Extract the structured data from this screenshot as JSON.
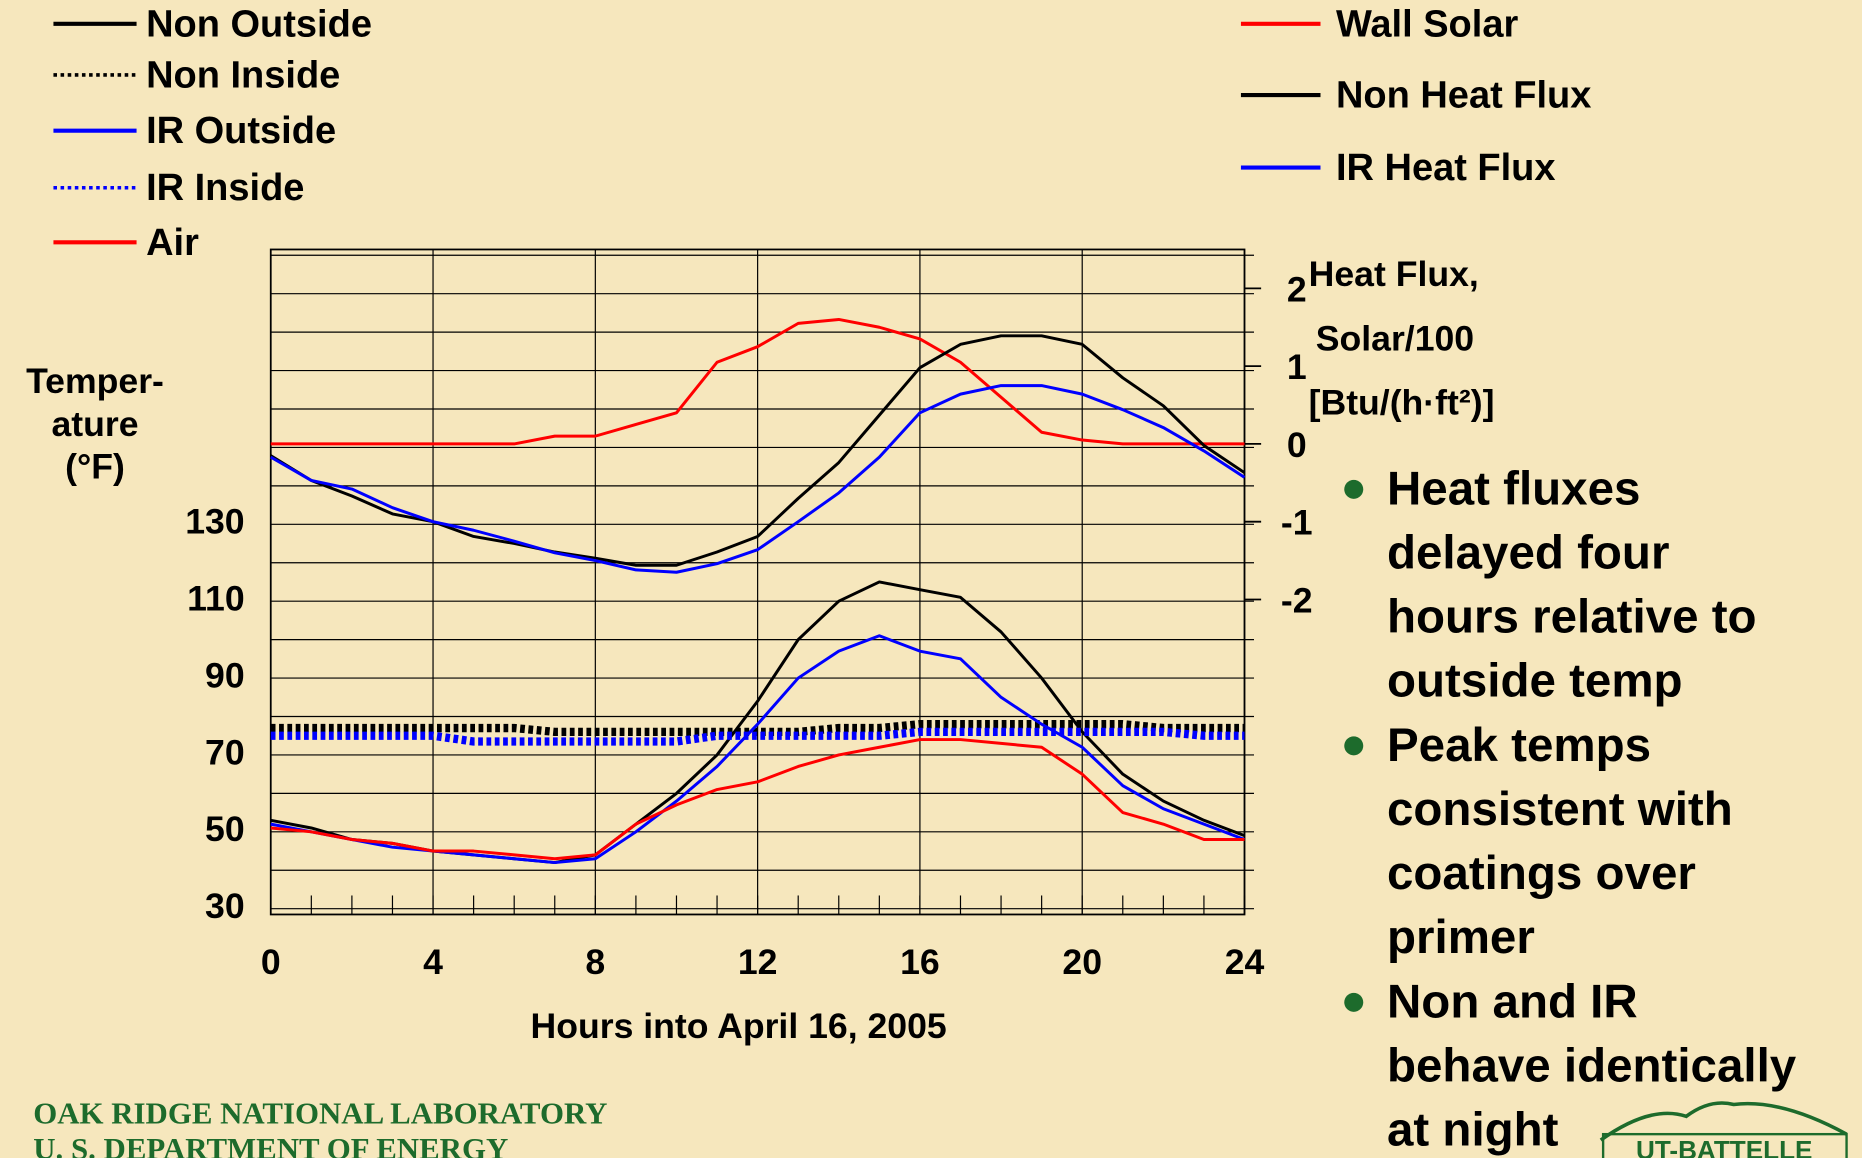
{
  "chart_data": {
    "type": "line",
    "xlabel": "Hours into April 16, 2005",
    "ylabel": [
      "Temper-",
      "ature",
      "(°F)"
    ],
    "y2label": [
      "Heat Flux,",
      "Solar/100",
      "[Btu/(h·ft²)]"
    ],
    "x": [
      0,
      1,
      2,
      3,
      4,
      5,
      6,
      7,
      8,
      9,
      10,
      11,
      12,
      13,
      14,
      15,
      16,
      17,
      18,
      19,
      20,
      21,
      22,
      23,
      24
    ],
    "xlim": [
      0,
      24
    ],
    "xticks": [
      0,
      4,
      8,
      12,
      16,
      20,
      24
    ],
    "ylim": [
      28.5,
      201.5
    ],
    "yticks": [
      30,
      50,
      70,
      90,
      110,
      130
    ],
    "yminorticks": [
      30,
      40,
      50,
      60,
      70,
      80,
      90,
      100,
      110,
      120,
      130,
      140,
      150,
      160,
      170,
      180,
      190,
      200
    ],
    "y2lim": [
      -6.05,
      2.5
    ],
    "y2ticks": [
      -2,
      -1,
      0,
      1,
      2
    ],
    "grid": true,
    "series": [
      {
        "name": "Non Outside",
        "color": "#000000",
        "style": "solid",
        "values": [
          53,
          51,
          48,
          47,
          45,
          44,
          43,
          42,
          44,
          52,
          60,
          70,
          84,
          100,
          110,
          115,
          113,
          111,
          102,
          90,
          76,
          65,
          58,
          53,
          49
        ]
      },
      {
        "name": "Non Inside",
        "color": "#000000",
        "style": "dotted",
        "values": [
          77,
          77,
          77,
          77,
          77,
          77,
          77,
          76,
          76,
          76,
          76,
          76,
          76,
          76,
          77,
          77,
          78,
          78,
          78,
          78,
          78,
          78,
          77,
          77,
          77
        ]
      },
      {
        "name": "IR Outside",
        "color": "#0000ff",
        "style": "solid",
        "values": [
          52,
          50,
          48,
          46,
          45,
          44,
          43,
          42,
          43,
          50,
          58,
          67,
          78,
          90,
          97,
          101,
          97,
          95,
          85,
          78,
          72,
          62,
          56,
          52,
          48
        ]
      },
      {
        "name": "IR Inside",
        "color": "#0000ff",
        "style": "dotted",
        "values": [
          75,
          75,
          75,
          75,
          75,
          73.5,
          73.5,
          73.5,
          73.5,
          73.5,
          73.5,
          75,
          75,
          75,
          75,
          75,
          76,
          76,
          76,
          76,
          76,
          76,
          76,
          75,
          75
        ]
      },
      {
        "name": "Air",
        "color": "#ff0000",
        "style": "solid",
        "values": [
          51,
          50,
          48,
          47,
          45,
          45,
          44,
          43,
          44,
          52,
          57,
          61,
          63,
          67,
          70,
          72,
          74,
          74,
          73,
          72,
          65,
          55,
          52,
          48,
          48
        ]
      },
      {
        "name": "Wall Solar",
        "color": "#ff0000",
        "style": "solid",
        "axis": "y2",
        "values": [
          0,
          0,
          0,
          0,
          0,
          0,
          0,
          0.1,
          0.1,
          0.25,
          0.4,
          1.05,
          1.25,
          1.55,
          1.6,
          1.5,
          1.35,
          1.05,
          0.6,
          0.15,
          0.05,
          0,
          0,
          0,
          0
        ]
      },
      {
        "name": "Non Heat Flux",
        "color": "#000000",
        "style": "solid",
        "axis": "y2",
        "values": [
          -0.15,
          -0.47,
          -0.67,
          -0.9,
          -1.0,
          -1.19,
          -1.28,
          -1.39,
          -1.47,
          -1.56,
          -1.56,
          -1.39,
          -1.19,
          -0.7,
          -0.24,
          0.37,
          0.98,
          1.28,
          1.39,
          1.39,
          1.28,
          0.85,
          0.49,
          -0.02,
          -0.37
        ]
      },
      {
        "name": "IR Heat Flux",
        "color": "#0000ff",
        "style": "solid",
        "axis": "y2",
        "values": [
          -0.17,
          -0.47,
          -0.58,
          -0.82,
          -1.0,
          -1.11,
          -1.25,
          -1.4,
          -1.5,
          -1.62,
          -1.65,
          -1.54,
          -1.36,
          -1.0,
          -0.63,
          -0.17,
          0.4,
          0.64,
          0.75,
          0.75,
          0.64,
          0.44,
          0.21,
          -0.09,
          -0.43
        ]
      }
    ],
    "bullets": [
      [
        "Heat fluxes",
        "delayed four",
        "hours relative to",
        "outside temp"
      ],
      [
        "Peak temps",
        "consistent with",
        "coatings over",
        "primer"
      ],
      [
        "Non and IR",
        "behave identically",
        "at night"
      ]
    ],
    "footer": [
      "OAK RIDGE NATIONAL LABORATORY",
      "U. S. DEPARTMENT OF ENERGY"
    ],
    "logo": "UT-BATTELLE"
  }
}
